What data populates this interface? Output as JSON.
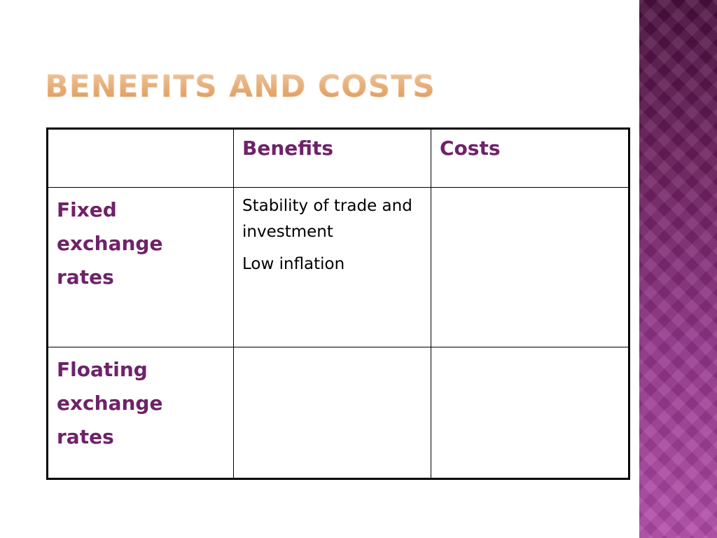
{
  "slide": {
    "title": "BENEFITS AND COSTS"
  },
  "table": {
    "headers": [
      "",
      "Benefits",
      "Costs"
    ],
    "rows": [
      {
        "label": "Fixed exchange rates",
        "benefits": [
          "Stability of trade and investment",
          "Low inflation"
        ],
        "costs": []
      },
      {
        "label": "Floating exchange rates",
        "benefits": [],
        "costs": []
      }
    ]
  },
  "colors": {
    "title": "#f2b77c",
    "header_text": "#6f2269",
    "side_band": "#93348a"
  }
}
